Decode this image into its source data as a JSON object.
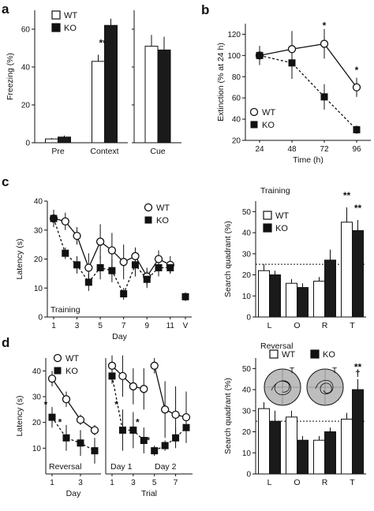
{
  "chart_data": [
    {
      "id": "a1",
      "panel_label": "a",
      "type": "bar",
      "ylabel": "Freezing (%)",
      "ylim": [
        0,
        70
      ],
      "yticks": [
        0,
        20,
        40,
        60
      ],
      "categories": [
        "Pre",
        "Context"
      ],
      "legend": [
        "WT",
        "KO"
      ],
      "series": [
        {
          "name": "WT",
          "color": "#ffffff",
          "values": [
            2,
            43
          ],
          "err": [
            0.5,
            3.5
          ]
        },
        {
          "name": "KO",
          "color": "#1a1a1a",
          "values": [
            3,
            62
          ],
          "err": [
            0.8,
            3.5
          ]
        }
      ],
      "annotations": [
        {
          "category": "Context",
          "text": "***"
        }
      ]
    },
    {
      "id": "a2",
      "type": "bar",
      "ylim": [
        0,
        70
      ],
      "yticks": [
        0,
        20,
        40,
        60
      ],
      "categories": [
        "Cue"
      ],
      "series": [
        {
          "name": "WT",
          "color": "#ffffff",
          "values": [
            51
          ],
          "err": [
            6
          ]
        },
        {
          "name": "KO",
          "color": "#1a1a1a",
          "values": [
            49
          ],
          "err": [
            7
          ]
        }
      ]
    },
    {
      "id": "b",
      "panel_label": "b",
      "type": "line",
      "xlabel": "Time (h)",
      "ylabel": "Extinction (% at 24 h)",
      "xlim": [
        24,
        96
      ],
      "ylim": [
        20,
        130
      ],
      "xticks": [
        24,
        48,
        72,
        96
      ],
      "yticks": [
        20,
        40,
        60,
        80,
        100,
        120
      ],
      "legend": [
        "WT",
        "KO"
      ],
      "series": [
        {
          "name": "WT",
          "x": [
            24,
            48,
            72,
            96
          ],
          "values": [
            100,
            106,
            111,
            70
          ],
          "err": [
            9,
            17,
            14,
            9
          ]
        },
        {
          "name": "KO",
          "x": [
            24,
            48,
            72,
            96
          ],
          "values": [
            100,
            93,
            61,
            30
          ],
          "err": [
            9,
            15,
            12,
            4
          ]
        }
      ],
      "annotations": [
        {
          "x": 72,
          "y": 128,
          "text": "*"
        },
        {
          "x": 96,
          "y": 86,
          "text": "*"
        }
      ]
    },
    {
      "id": "c1",
      "panel_label": "c",
      "type": "line",
      "xlabel": "Day",
      "ylabel": "Latency (s)",
      "note": "Training",
      "xlim": [
        1,
        12
      ],
      "ylim": [
        0,
        40
      ],
      "yticks": [
        0,
        10,
        20,
        30,
        40
      ],
      "xticks": [
        "1",
        "3",
        "5",
        "7",
        "9",
        "11",
        "V"
      ],
      "xtick_pos": [
        1,
        3,
        5,
        7,
        9,
        11,
        12.3
      ],
      "legend": [
        "WT",
        "KO"
      ],
      "series": [
        {
          "name": "WT",
          "x": [
            1,
            2,
            3,
            4,
            5,
            6,
            7,
            8,
            9,
            10,
            11
          ],
          "values": [
            34,
            33,
            28,
            17,
            26,
            23,
            19,
            21,
            14,
            20,
            18
          ],
          "err": [
            3,
            3,
            3,
            5,
            6,
            6,
            6,
            3,
            3,
            3,
            3
          ]
        },
        {
          "name": "KO",
          "x": [
            1,
            2,
            3,
            4,
            5,
            6,
            7,
            8,
            9,
            10,
            11
          ],
          "values": [
            34,
            22,
            18,
            12,
            17,
            16,
            8,
            18,
            13,
            17,
            17
          ],
          "err": [
            2,
            2,
            3,
            3,
            4,
            4,
            2,
            4,
            3,
            3,
            2
          ]
        },
        {
          "name": "KO",
          "x": [
            12.3
          ],
          "values": [
            7
          ],
          "err": [
            1.5
          ]
        }
      ]
    },
    {
      "id": "c2",
      "type": "bar",
      "title": "Training",
      "ylabel": "Search quadrant (%)",
      "ylim": [
        0,
        55
      ],
      "yticks": [
        0,
        10,
        20,
        30,
        40,
        50
      ],
      "categories": [
        "L",
        "O",
        "R",
        "T"
      ],
      "reference_line": 25,
      "legend": [
        "WT",
        "KO"
      ],
      "series": [
        {
          "name": "WT",
          "color": "#ffffff",
          "values": [
            22,
            16,
            17,
            45
          ],
          "err": [
            3,
            2,
            2,
            7
          ]
        },
        {
          "name": "KO",
          "color": "#1a1a1a",
          "values": [
            20,
            14,
            27,
            41
          ],
          "err": [
            2,
            2,
            5,
            5
          ]
        }
      ],
      "annotations": [
        {
          "category": "T",
          "series": "WT",
          "text": "**"
        },
        {
          "category": "T",
          "series": "KO",
          "text": "**"
        }
      ]
    },
    {
      "id": "d1",
      "panel_label": "d",
      "type": "line",
      "xlabel": "Day",
      "ylabel": "Latency (s)",
      "note": "Reversal",
      "xlim": [
        1,
        4
      ],
      "ylim": [
        0,
        45
      ],
      "yticks": [
        10,
        20,
        30,
        40
      ],
      "xticks": [
        1,
        3
      ],
      "legend": [
        "WT",
        "KO"
      ],
      "series": [
        {
          "name": "WT",
          "x": [
            1,
            2,
            3,
            4
          ],
          "values": [
            37,
            29,
            21,
            17
          ],
          "err": [
            3,
            3,
            2,
            2
          ]
        },
        {
          "name": "KO",
          "x": [
            1,
            2,
            3,
            4
          ],
          "values": [
            22,
            14,
            12,
            9
          ],
          "err": [
            4,
            5,
            5,
            5
          ]
        }
      ],
      "annotations": [
        {
          "x": 1,
          "y": 27,
          "text": "*"
        },
        {
          "x": 2,
          "y": 20,
          "text": "*"
        }
      ]
    },
    {
      "id": "d2",
      "type": "line",
      "xlabel": "Trial",
      "xlim": [
        1,
        8
      ],
      "ylim": [
        0,
        45
      ],
      "xticks": [
        1,
        3,
        5,
        7
      ],
      "notes": [
        "Day 1",
        "Day 2"
      ],
      "series": [
        {
          "name": "WT",
          "x": [
            1,
            2,
            3,
            4
          ],
          "values": [
            42,
            38,
            34,
            33
          ],
          "err": [
            4,
            8,
            7,
            8
          ]
        },
        {
          "name": "WT",
          "x": [
            5,
            6,
            7,
            8
          ],
          "values": [
            42,
            25,
            23,
            22
          ],
          "err": [
            3,
            11,
            11,
            10
          ]
        },
        {
          "name": "KO",
          "x": [
            1,
            2,
            3,
            4
          ],
          "values": [
            38,
            17,
            17,
            13
          ],
          "err": [
            3,
            8,
            7,
            5
          ]
        },
        {
          "name": "KO",
          "x": [
            5,
            6,
            7,
            8
          ],
          "values": [
            9,
            11,
            14,
            18
          ],
          "err": [
            2,
            2,
            4,
            5
          ]
        }
      ],
      "annotations": [
        {
          "x": 2,
          "y": 27,
          "text": "*"
        },
        {
          "x": 4,
          "y": 20,
          "text": "*"
        },
        {
          "x": 5,
          "y": 13,
          "text": "*"
        }
      ]
    },
    {
      "id": "d3",
      "type": "bar",
      "title": "Reversal",
      "ylabel": "Search quadrant (%)",
      "ylim": [
        0,
        55
      ],
      "yticks": [
        0,
        10,
        20,
        30,
        40,
        50
      ],
      "categories": [
        "L",
        "O",
        "R",
        "T"
      ],
      "reference_line": 25,
      "legend": [
        "WT",
        "KO"
      ],
      "series": [
        {
          "name": "WT",
          "color": "#ffffff",
          "values": [
            31,
            27,
            16,
            26
          ],
          "err": [
            3,
            3,
            2,
            3
          ]
        },
        {
          "name": "KO",
          "color": "#1a1a1a",
          "values": [
            25,
            16,
            20,
            40
          ],
          "err": [
            5,
            2,
            2,
            5
          ]
        }
      ],
      "annotations": [
        {
          "category": "T",
          "series": "KO",
          "text": "**"
        },
        {
          "category": "T",
          "series": "KO",
          "text": "†"
        }
      ],
      "inset_labels": [
        "T",
        "T"
      ]
    }
  ]
}
